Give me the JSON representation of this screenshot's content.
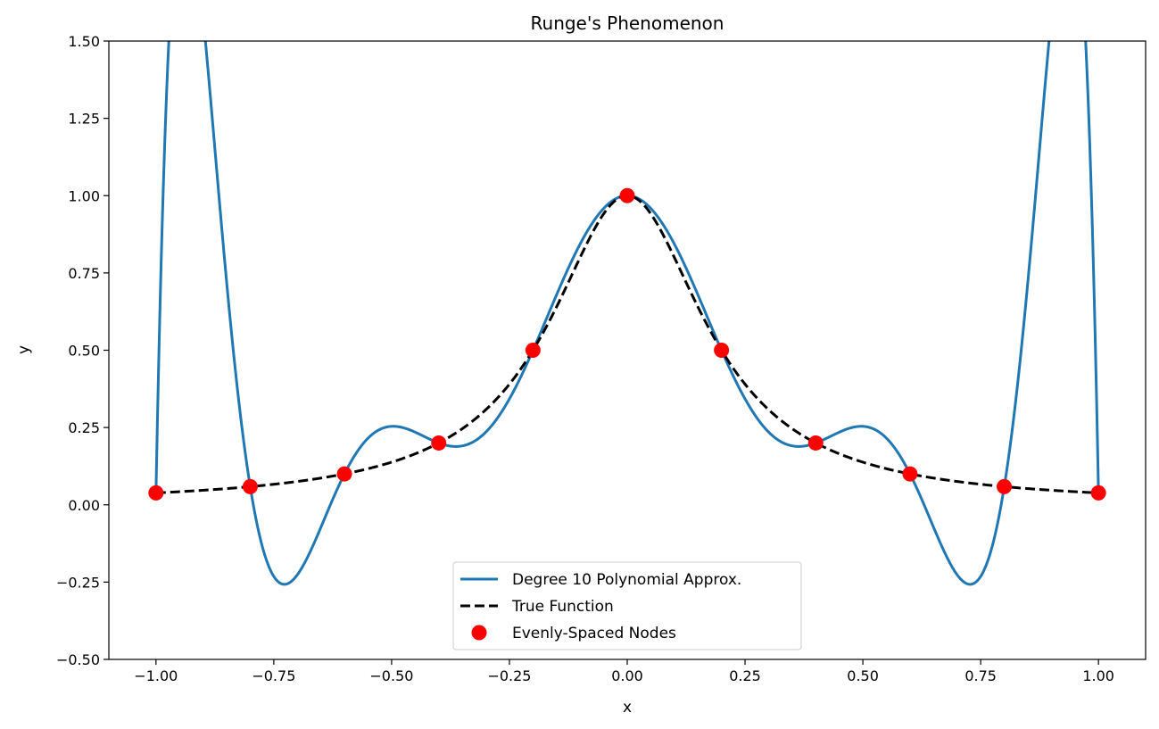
{
  "chart_data": {
    "type": "line",
    "title": "Runge's Phenomenon",
    "xlabel": "x",
    "ylabel": "y",
    "xlim": [
      -1.1,
      1.1
    ],
    "ylim": [
      -0.5,
      1.5
    ],
    "xticks": [
      -1.0,
      -0.75,
      -0.5,
      -0.25,
      0.0,
      0.25,
      0.5,
      0.75,
      1.0
    ],
    "xtick_labels": [
      "−1.00",
      "−0.75",
      "−0.50",
      "−0.25",
      "0.00",
      "0.25",
      "0.50",
      "0.75",
      "1.00"
    ],
    "yticks": [
      -0.5,
      -0.25,
      0.0,
      0.25,
      0.5,
      0.75,
      1.0,
      1.25,
      1.5
    ],
    "ytick_labels": [
      "−0.50",
      "−0.25",
      "0.00",
      "0.25",
      "0.50",
      "0.75",
      "1.00",
      "1.25",
      "1.50"
    ],
    "grid": false,
    "legend_position": "bottom-center",
    "series": [
      {
        "name": "Degree 10 Polynomial Approx.",
        "style": "solid",
        "color": "#1f77b4",
        "function": "lagrange_interpolant_degree_10_of_1/(1+25x^2)_on_equispaced_nodes",
        "x_range": [
          -1.0,
          1.0
        ]
      },
      {
        "name": "True Function",
        "style": "dashed",
        "color": "#000000",
        "function": "1/(1+25x^2)",
        "x_range": [
          -1.0,
          1.0
        ]
      },
      {
        "name": "Evenly-Spaced Nodes",
        "style": "markers",
        "color": "#ff0000",
        "x": [
          -1.0,
          -0.8,
          -0.6,
          -0.4,
          -0.2,
          0.0,
          0.2,
          0.4,
          0.6,
          0.8,
          1.0
        ],
        "y": [
          0.0385,
          0.0588,
          0.1,
          0.2,
          0.5,
          1.0,
          0.5,
          0.2,
          0.1,
          0.0588,
          0.0385
        ]
      }
    ]
  }
}
